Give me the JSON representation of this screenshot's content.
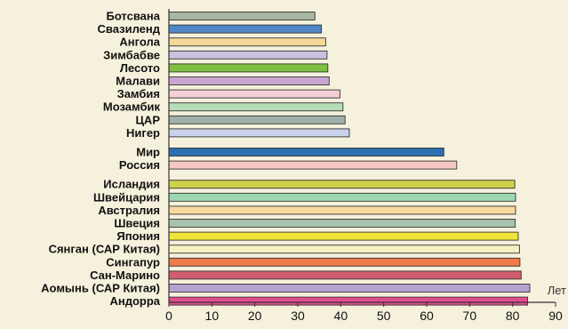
{
  "chart_data": {
    "type": "bar",
    "orientation": "horizontal",
    "title": "",
    "xlabel": "Лет",
    "ylabel": "",
    "xlim": [
      0,
      90
    ],
    "xticks": [
      0,
      10,
      20,
      30,
      40,
      50,
      60,
      70,
      80,
      90
    ],
    "grid": false,
    "legend": "none",
    "groups": [
      {
        "bars": [
          {
            "label": "Ботсвана",
            "value": 34,
            "color": "#a9b6a2"
          },
          {
            "label": "Свазиленд",
            "value": 35.5,
            "color": "#4f86c6"
          },
          {
            "label": "Ангола",
            "value": 36.5,
            "color": "#f3d898"
          },
          {
            "label": "Зимбабве",
            "value": 36.8,
            "color": "#c9c2dd"
          },
          {
            "label": "Лесото",
            "value": 37,
            "color": "#7fbf3f"
          },
          {
            "label": "Малави",
            "value": 37.3,
            "color": "#c8a6cf"
          },
          {
            "label": "Замбия",
            "value": 39.8,
            "color": "#f4cfd8"
          },
          {
            "label": "Мозамбик",
            "value": 40.5,
            "color": "#b7ddb8"
          },
          {
            "label": "ЦАР",
            "value": 41,
            "color": "#9fb0a8"
          },
          {
            "label": "Нигер",
            "value": 42,
            "color": "#c9d2ea"
          }
        ]
      },
      {
        "bars": [
          {
            "label": "Мир",
            "value": 64,
            "color": "#2e6fb0"
          },
          {
            "label": "Россия",
            "value": 67,
            "color": "#f6c8c4"
          }
        ]
      },
      {
        "bars": [
          {
            "label": "Исландия",
            "value": 80.5,
            "color": "#cdd24a"
          },
          {
            "label": "Швейцария",
            "value": 80.7,
            "color": "#9cd7b2"
          },
          {
            "label": "Австралия",
            "value": 80.7,
            "color": "#f7d9a0"
          },
          {
            "label": "Швеция",
            "value": 80.6,
            "color": "#a8c3ad"
          },
          {
            "label": "Япония",
            "value": 81.3,
            "color": "#f0e53a"
          },
          {
            "label": "Сянган (САР Китая)",
            "value": 81.6,
            "color": "#f6f0c2"
          },
          {
            "label": "Сингапур",
            "value": 81.7,
            "color": "#ef7b4a"
          },
          {
            "label": "Сан-Марино",
            "value": 82,
            "color": "#cf5f6e"
          },
          {
            "label": "Аомынь (САР Китая)",
            "value": 84,
            "color": "#b5a2cf"
          },
          {
            "label": "Андорра",
            "value": 83.5,
            "color": "#e24d8f"
          }
        ]
      }
    ]
  }
}
